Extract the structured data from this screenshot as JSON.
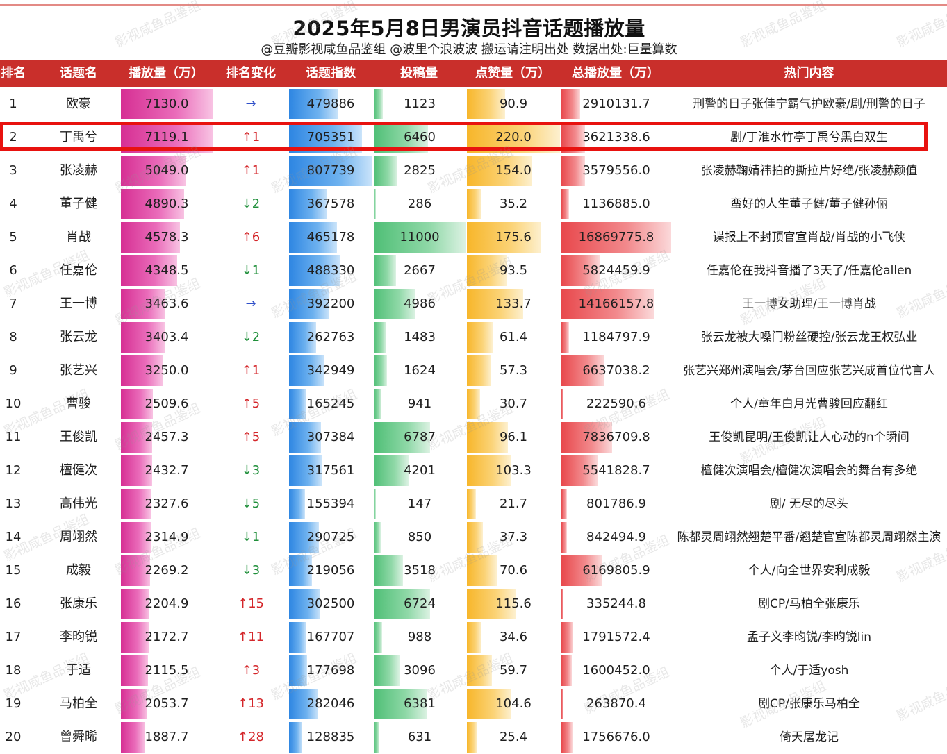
{
  "title": "2025年5月8日男演员抖音话题播放量",
  "subtitle": "@豆瓣影视咸鱼品鉴组 @波里个浪波波  搬运请注明出处  数据出处:巨量算数",
  "watermark": "影视咸鱼品鉴组",
  "colors": {
    "header": "#c92f2b",
    "plays": "#d62f93",
    "index": "#2e86e2",
    "posts": "#4fbf76",
    "likes": "#f7b62a",
    "total": "#e8484c",
    "highlight": "#e8120f"
  },
  "chart_data": {
    "type": "table",
    "columns": [
      "排名",
      "话题名",
      "播放量（万）",
      "排名变化",
      "话题指数",
      "投稿量",
      "点赞量（万）",
      "总播放量（万）",
      "热门内容"
    ],
    "highlighted_row": 2,
    "rows": [
      {
        "rank": "1",
        "name": "欧豪",
        "plays": 7130.0,
        "plays_text": "7130.0",
        "change": "→",
        "dir": "same",
        "index": 479886,
        "index_text": "479886",
        "posts": 1123,
        "posts_text": "1123",
        "likes": 90.9,
        "likes_text": "90.9",
        "total": 2910131.7,
        "total_text": "2910131.7",
        "hot": "刑警的日子张佳宁霸气护欧豪/剧/刑警的日子"
      },
      {
        "rank": "2",
        "name": "丁禹兮",
        "plays": 7119.1,
        "plays_text": "7119.1",
        "change": "↑1",
        "dir": "up",
        "index": 705351,
        "index_text": "705351",
        "posts": 6460,
        "posts_text": "6460",
        "likes": 220.0,
        "likes_text": "220.0",
        "total": 3621338.6,
        "total_text": "3621338.6",
        "hot": "剧/丁淮水竹亭丁禹兮黑白双生"
      },
      {
        "rank": "3",
        "name": "张凌赫",
        "plays": 5049.0,
        "plays_text": "5049.0",
        "change": "↑1",
        "dir": "up",
        "index": 807739,
        "index_text": "807739",
        "posts": 2825,
        "posts_text": "2825",
        "likes": 154.0,
        "likes_text": "154.0",
        "total": 3579556.0,
        "total_text": "3579556.0",
        "hot": "张凌赫鞠婧祎拍的撕拉片好绝/张凌赫颜值"
      },
      {
        "rank": "4",
        "name": "董子健",
        "plays": 4890.3,
        "plays_text": "4890.3",
        "change": "↓2",
        "dir": "down",
        "index": 367578,
        "index_text": "367578",
        "posts": 286,
        "posts_text": "286",
        "likes": 35.2,
        "likes_text": "35.2",
        "total": 1136885.0,
        "total_text": "1136885.0",
        "hot": "蛮好的人生董子健/董子健孙俪"
      },
      {
        "rank": "5",
        "name": "肖战",
        "plays": 4578.3,
        "plays_text": "4578.3",
        "change": "↑6",
        "dir": "up",
        "index": 465178,
        "index_text": "465178",
        "posts": 11000,
        "posts_text": "11000",
        "likes": 175.6,
        "likes_text": "175.6",
        "total": 16869775.8,
        "total_text": "16869775.8",
        "hot": "谍报上不封顶官宣肖战/肖战的小飞侠"
      },
      {
        "rank": "6",
        "name": "任嘉伦",
        "plays": 4348.5,
        "plays_text": "4348.5",
        "change": "↓1",
        "dir": "down",
        "index": 488330,
        "index_text": "488330",
        "posts": 2667,
        "posts_text": "2667",
        "likes": 93.5,
        "likes_text": "93.5",
        "total": 5824459.9,
        "total_text": "5824459.9",
        "hot": "任嘉伦在我抖音播了3天了/任嘉伦allen"
      },
      {
        "rank": "7",
        "name": "王一博",
        "plays": 3463.6,
        "plays_text": "3463.6",
        "change": "→",
        "dir": "same",
        "index": 392200,
        "index_text": "392200",
        "posts": 4986,
        "posts_text": "4986",
        "likes": 133.7,
        "likes_text": "133.7",
        "total": 14166157.8,
        "total_text": "14166157.8",
        "hot": "王一博女助理/王一博肖战"
      },
      {
        "rank": "8",
        "name": "张云龙",
        "plays": 3403.4,
        "plays_text": "3403.4",
        "change": "↓2",
        "dir": "down",
        "index": 262763,
        "index_text": "262763",
        "posts": 1483,
        "posts_text": "1483",
        "likes": 61.4,
        "likes_text": "61.4",
        "total": 1184797.9,
        "total_text": "1184797.9",
        "hot": "张云龙被大嗓门粉丝硬控/张云龙王权弘业"
      },
      {
        "rank": "9",
        "name": "张艺兴",
        "plays": 3250.0,
        "plays_text": "3250.0",
        "change": "↑1",
        "dir": "up",
        "index": 342949,
        "index_text": "342949",
        "posts": 1624,
        "posts_text": "1624",
        "likes": 57.3,
        "likes_text": "57.3",
        "total": 6637038.2,
        "total_text": "6637038.2",
        "hot": "张艺兴郑州演唱会/茅台回应张艺兴成首位代言人"
      },
      {
        "rank": "10",
        "name": "曹骏",
        "plays": 2509.6,
        "plays_text": "2509.6",
        "change": "↑5",
        "dir": "up",
        "index": 165245,
        "index_text": "165245",
        "posts": 941,
        "posts_text": "941",
        "likes": 30.7,
        "likes_text": "30.7",
        "total": 222590.6,
        "total_text": "222590.6",
        "hot": "个人/童年白月光曹骏回应翻红"
      },
      {
        "rank": "11",
        "name": "王俊凯",
        "plays": 2457.3,
        "plays_text": "2457.3",
        "change": "↑5",
        "dir": "up",
        "index": 307384,
        "index_text": "307384",
        "posts": 6787,
        "posts_text": "6787",
        "likes": 96.1,
        "likes_text": "96.1",
        "total": 7836709.8,
        "total_text": "7836709.8",
        "hot": "王俊凯昆明/王俊凯让人心动的n个瞬间"
      },
      {
        "rank": "12",
        "name": "檀健次",
        "plays": 2432.7,
        "plays_text": "2432.7",
        "change": "↓3",
        "dir": "down",
        "index": 317561,
        "index_text": "317561",
        "posts": 4201,
        "posts_text": "4201",
        "likes": 103.3,
        "likes_text": "103.3",
        "total": 5541828.7,
        "total_text": "5541828.7",
        "hot": "檀健次演唱会/檀健次演唱会的舞台有多绝"
      },
      {
        "rank": "13",
        "name": "高伟光",
        "plays": 2327.6,
        "plays_text": "2327.6",
        "change": "↓5",
        "dir": "down",
        "index": 155394,
        "index_text": "155394",
        "posts": 147,
        "posts_text": "147",
        "likes": 21.7,
        "likes_text": "21.7",
        "total": 801786.9,
        "total_text": "801786.9",
        "hot": "剧/ 无尽的尽头"
      },
      {
        "rank": "14",
        "name": "周翊然",
        "plays": 2314.9,
        "plays_text": "2314.9",
        "change": "↓1",
        "dir": "down",
        "index": 290725,
        "index_text": "290725",
        "posts": 850,
        "posts_text": "850",
        "likes": 37.3,
        "likes_text": "37.3",
        "total": 842494.9,
        "total_text": "842494.9",
        "hot": "陈都灵周翊然翘楚平番/翘楚官宣陈都灵周翊然主演"
      },
      {
        "rank": "15",
        "name": "成毅",
        "plays": 2269.2,
        "plays_text": "2269.2",
        "change": "↓3",
        "dir": "down",
        "index": 219056,
        "index_text": "219056",
        "posts": 3518,
        "posts_text": "3518",
        "likes": 70.6,
        "likes_text": "70.6",
        "total": 6169805.9,
        "total_text": "6169805.9",
        "hot": "个人/向全世界安利成毅"
      },
      {
        "rank": "16",
        "name": "张康乐",
        "plays": 2204.9,
        "plays_text": "2204.9",
        "change": "↑15",
        "dir": "up",
        "index": 302500,
        "index_text": "302500",
        "posts": 6724,
        "posts_text": "6724",
        "likes": 115.6,
        "likes_text": "115.6",
        "total": 335244.8,
        "total_text": "335244.8",
        "hot": "剧CP/马柏全张康乐"
      },
      {
        "rank": "17",
        "name": "李昀锐",
        "plays": 2172.7,
        "plays_text": "2172.7",
        "change": "↑11",
        "dir": "up",
        "index": 167707,
        "index_text": "167707",
        "posts": 988,
        "posts_text": "988",
        "likes": 34.6,
        "likes_text": "34.6",
        "total": 1791572.4,
        "total_text": "1791572.4",
        "hot": "孟子义李昀锐/李昀锐lin"
      },
      {
        "rank": "18",
        "name": "于适",
        "plays": 2115.5,
        "plays_text": "2115.5",
        "change": "↑3",
        "dir": "up",
        "index": 177698,
        "index_text": "177698",
        "posts": 3096,
        "posts_text": "3096",
        "likes": 59.7,
        "likes_text": "59.7",
        "total": 1600452.0,
        "total_text": "1600452.0",
        "hot": "个人/于适yosh"
      },
      {
        "rank": "19",
        "name": "马柏全",
        "plays": 2053.7,
        "plays_text": "2053.7",
        "change": "↑13",
        "dir": "up",
        "index": 282046,
        "index_text": "282046",
        "posts": 6381,
        "posts_text": "6381",
        "likes": 104.6,
        "likes_text": "104.6",
        "total": 263870.4,
        "total_text": "263870.4",
        "hot": "剧CP/张康乐马柏全"
      },
      {
        "rank": "20",
        "name": "曾舜晞",
        "plays": 1887.7,
        "plays_text": "1887.7",
        "change": "↑28",
        "dir": "up",
        "index": 128835,
        "index_text": "128835",
        "posts": 631,
        "posts_text": "631",
        "likes": 25.4,
        "likes_text": "25.4",
        "total": 1756676.0,
        "total_text": "1756676.0",
        "hot": "倚天屠龙记"
      }
    ]
  }
}
